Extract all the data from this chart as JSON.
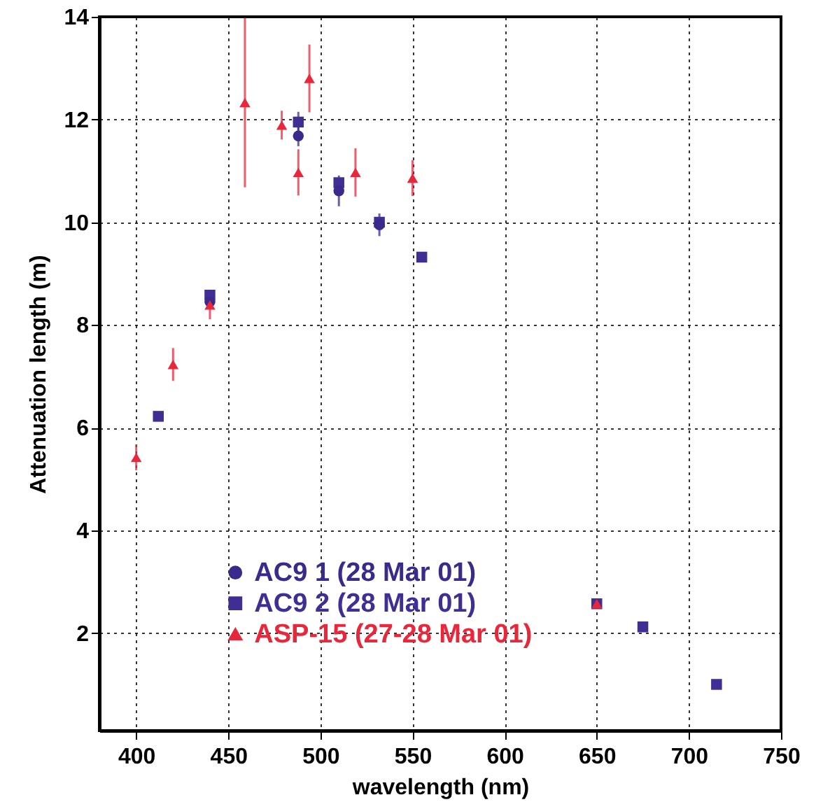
{
  "chart_data": {
    "type": "scatter",
    "xlabel": "wavelength (nm)",
    "ylabel": "Attenuation length (m)",
    "xlim": [
      380,
      750
    ],
    "ylim": [
      0.1,
      14
    ],
    "xticks": [
      400,
      450,
      500,
      550,
      600,
      650,
      700,
      750
    ],
    "yticks": [
      2,
      4,
      6,
      8,
      10,
      12,
      14
    ],
    "grid": true,
    "legend": "bottom left",
    "series": [
      {
        "name": "AC9 1 (28 Mar 01)",
        "color": "#3a2a8c",
        "marker": "circle",
        "x": [
          440,
          488,
          510,
          532
        ],
        "values": [
          8.45,
          11.68,
          10.61,
          9.95
        ],
        "errors": [
          0.1,
          0.2,
          0.3,
          0.22
        ]
      },
      {
        "name": "AC9 2 (28 Mar 01)",
        "color": "#412e94",
        "marker": "square",
        "x": [
          412,
          440,
          488,
          510,
          532,
          555,
          650,
          675,
          715
        ],
        "values": [
          6.22,
          8.58,
          11.95,
          10.77,
          10.0,
          9.32,
          2.57,
          2.12,
          1.0
        ],
        "errors": [
          null,
          null,
          0.2,
          null,
          null,
          null,
          null,
          null,
          null
        ]
      },
      {
        "name": "ASP-15 (27-28 Mar 01)",
        "color": "#e8273a",
        "marker": "triangle",
        "x": [
          400,
          420,
          440,
          459,
          479,
          488,
          494,
          519,
          550,
          650
        ],
        "values": [
          5.42,
          7.23,
          8.39,
          12.33,
          11.89,
          10.97,
          12.8,
          10.97,
          10.86,
          2.57
        ],
        "errors": [
          0.25,
          0.32,
          0.28,
          1.65,
          0.28,
          0.45,
          0.66,
          0.47,
          0.35,
          null
        ]
      }
    ]
  }
}
